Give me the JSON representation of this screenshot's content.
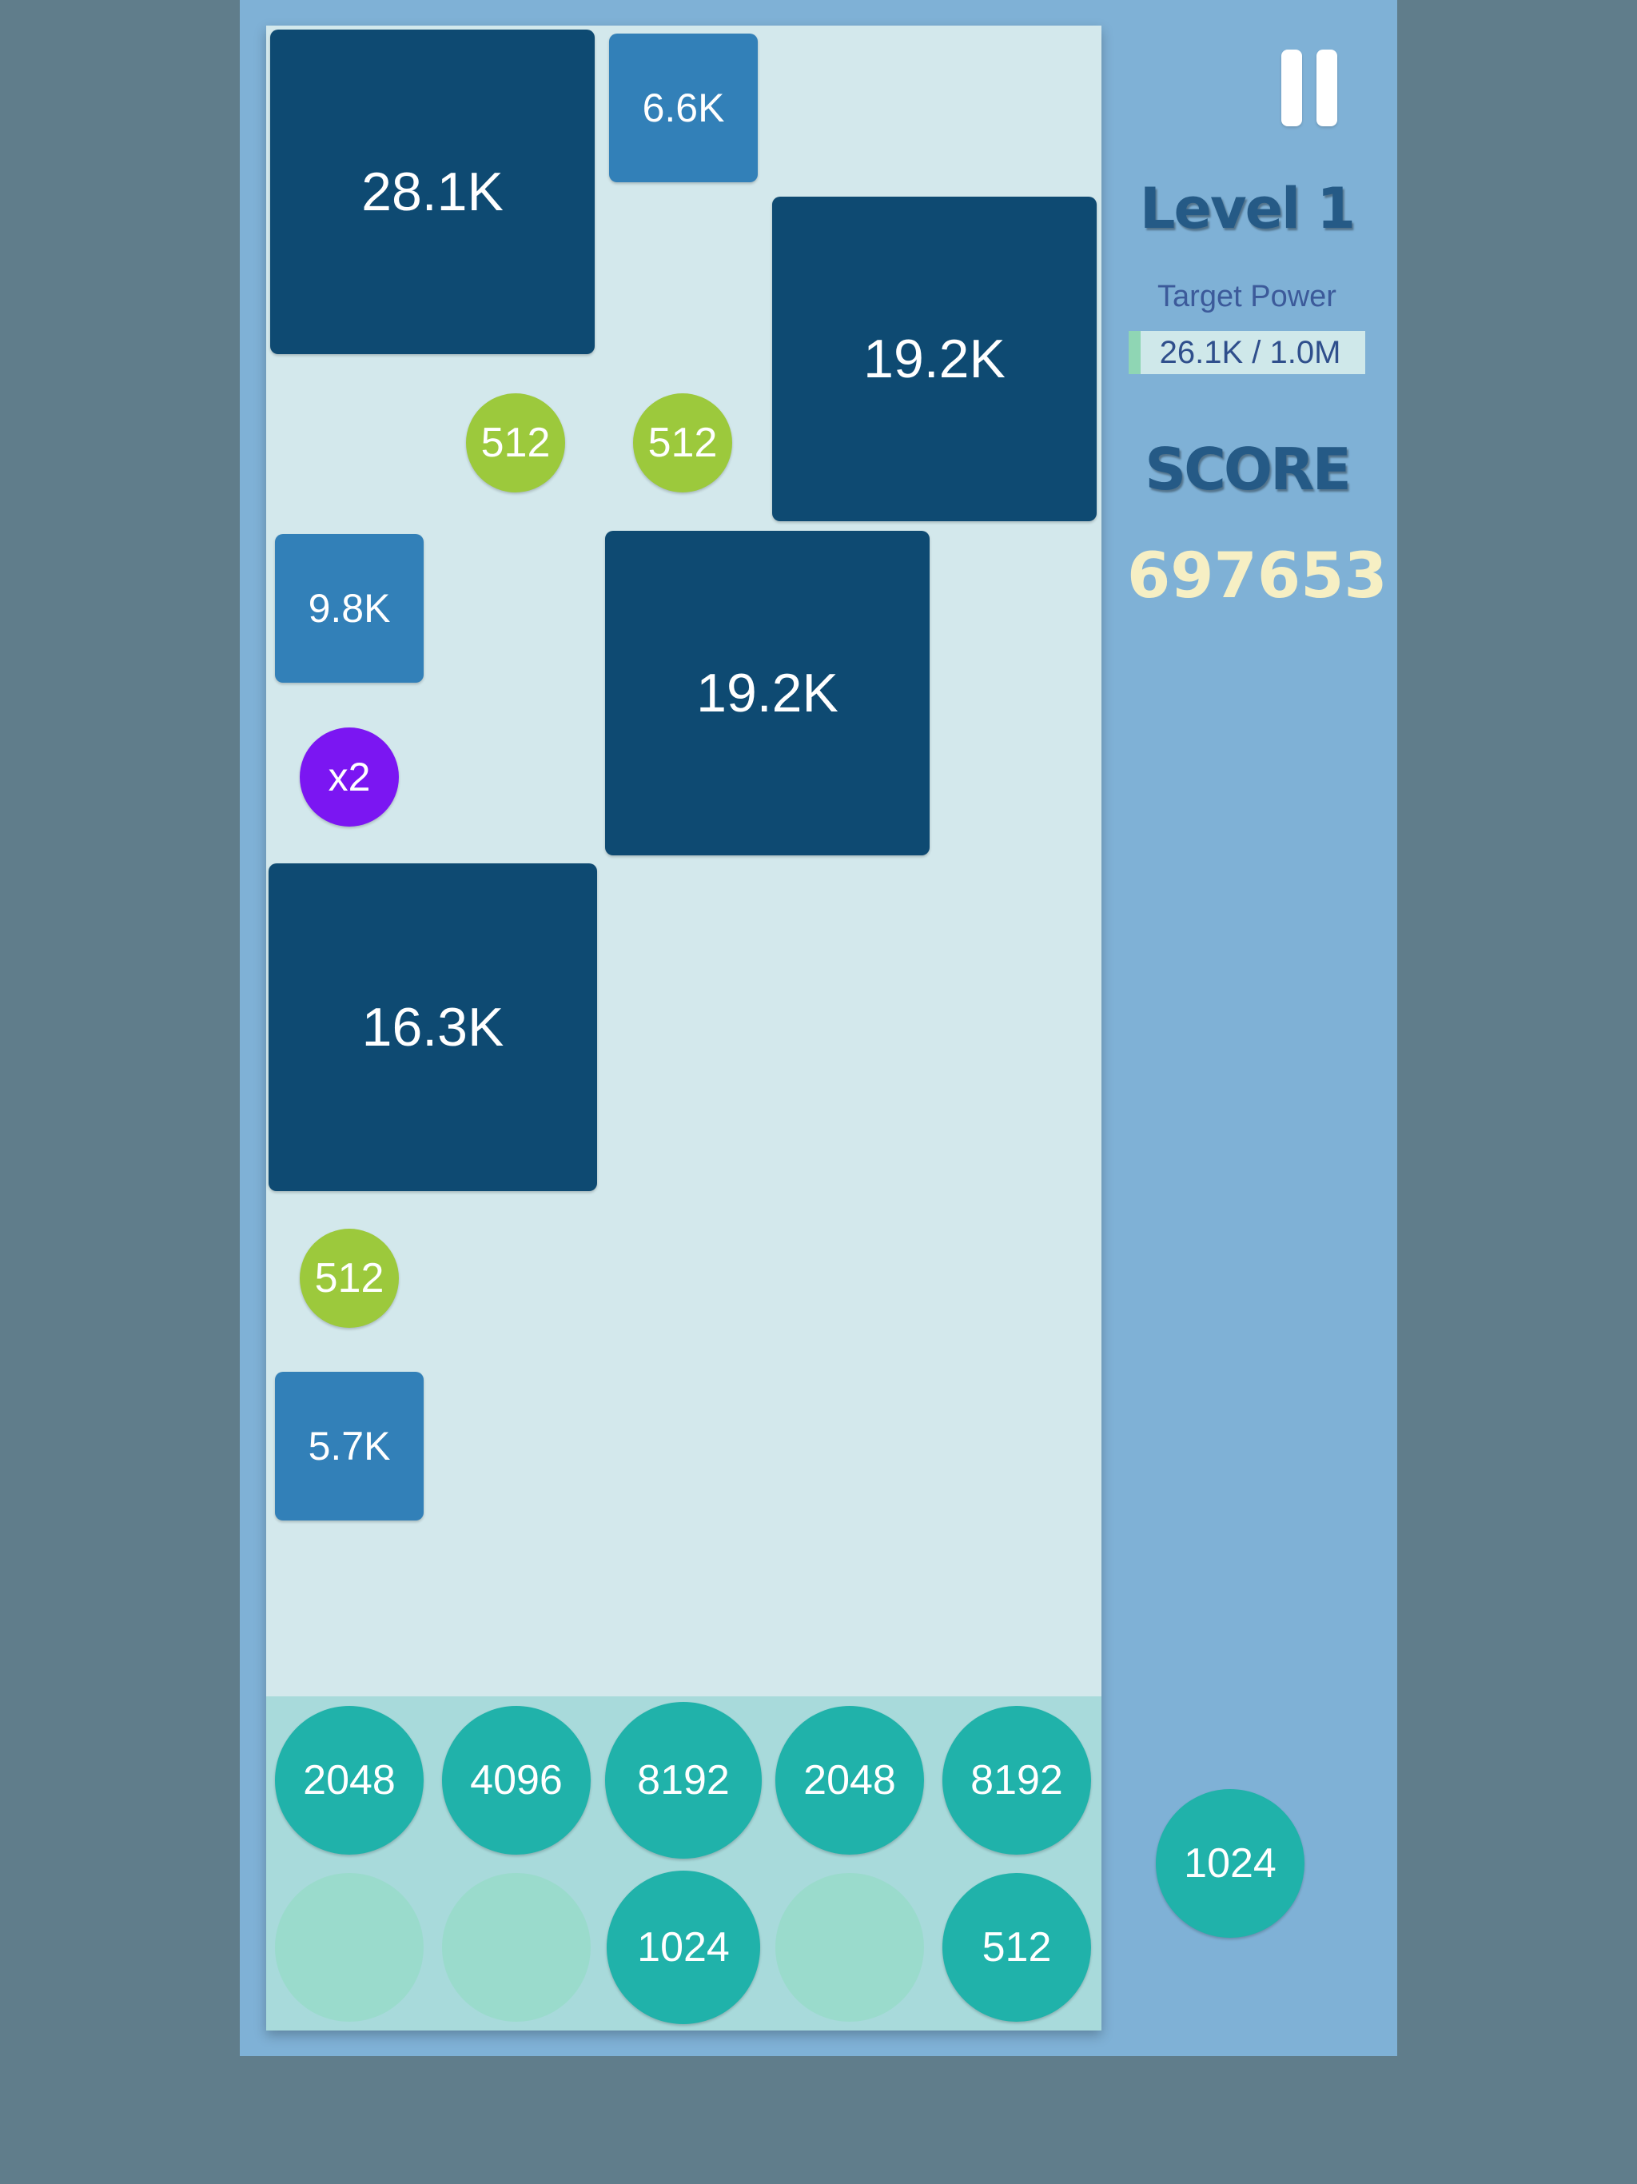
{
  "board": {
    "tiles": [
      {
        "id": "tile-28-1k",
        "label": "28.1K",
        "size": "big",
        "color": "#0e4a72"
      },
      {
        "id": "tile-6-6k",
        "label": "6.6K",
        "size": "small",
        "color": "#3280b8"
      },
      {
        "id": "tile-19-2k-a",
        "label": "19.2K",
        "size": "big",
        "color": "#0e4a72"
      },
      {
        "id": "tile-9-8k",
        "label": "9.8K",
        "size": "small",
        "color": "#3280b8"
      },
      {
        "id": "tile-19-2k-b",
        "label": "19.2K",
        "size": "big",
        "color": "#0e4a72"
      },
      {
        "id": "tile-16-3k",
        "label": "16.3K",
        "size": "big",
        "color": "#0e4a72"
      },
      {
        "id": "tile-5-7k",
        "label": "5.7K",
        "size": "small",
        "color": "#3280b8"
      }
    ],
    "orbs": [
      {
        "id": "orb-512-a",
        "label": "512",
        "color": "#9cc93c"
      },
      {
        "id": "orb-512-b",
        "label": "512",
        "color": "#9cc93c"
      },
      {
        "id": "orb-x2",
        "label": "x2",
        "color": "#7b16f2"
      },
      {
        "id": "orb-512-c",
        "label": "512",
        "color": "#9cc93c"
      }
    ]
  },
  "tray": {
    "row1": [
      "2048",
      "4096",
      "8192",
      "2048",
      "8192"
    ],
    "row2": [
      "",
      "",
      "1024",
      "",
      "512"
    ],
    "color": "#20b2aa",
    "empty_color": "#9adbcc"
  },
  "sidebar": {
    "pause_icon": "pause-icon",
    "level_title": "Level 1",
    "target_label": "Target Power",
    "target_value": "26.1K / 1.0M",
    "target_progress": 0.026,
    "score_label": "SCORE",
    "score_value": "697653",
    "next_orb": "1024"
  }
}
